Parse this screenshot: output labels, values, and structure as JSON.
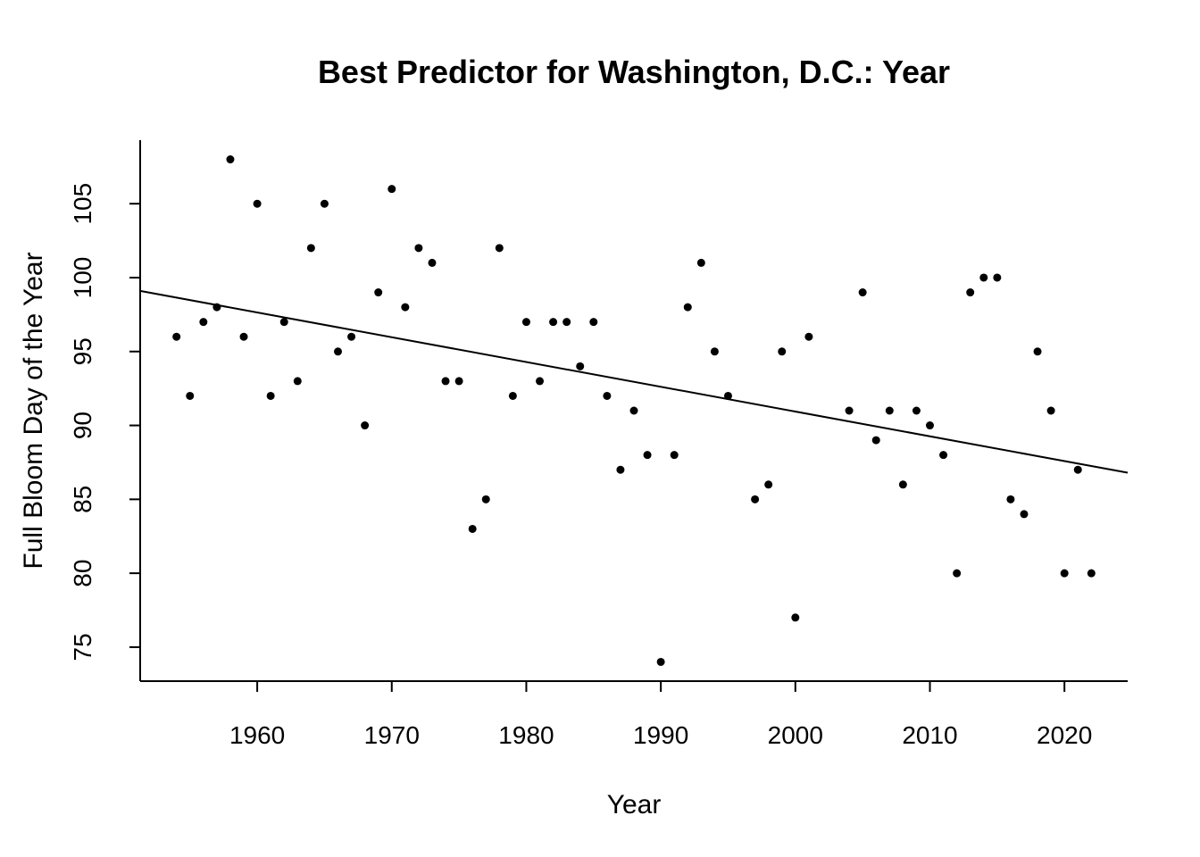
{
  "chart_data": {
    "type": "scatter",
    "title": "Best Predictor for Washington, D.C.: Year",
    "xlabel": "Year",
    "ylabel": "Full Bloom Day of the Year",
    "xlim": [
      1951.3,
      2024.7
    ],
    "ylim": [
      72.7,
      109.3
    ],
    "x_ticks": [
      1960,
      1970,
      1980,
      1990,
      2000,
      2010,
      2020
    ],
    "y_ticks": [
      75,
      80,
      85,
      90,
      95,
      100,
      105
    ],
    "grid": false,
    "points": [
      {
        "x": 1954,
        "y": 96
      },
      {
        "x": 1955,
        "y": 92
      },
      {
        "x": 1956,
        "y": 97
      },
      {
        "x": 1957,
        "y": 98
      },
      {
        "x": 1958,
        "y": 108
      },
      {
        "x": 1959,
        "y": 96
      },
      {
        "x": 1960,
        "y": 105
      },
      {
        "x": 1961,
        "y": 92
      },
      {
        "x": 1962,
        "y": 97
      },
      {
        "x": 1963,
        "y": 93
      },
      {
        "x": 1964,
        "y": 102
      },
      {
        "x": 1965,
        "y": 105
      },
      {
        "x": 1966,
        "y": 95
      },
      {
        "x": 1967,
        "y": 96
      },
      {
        "x": 1968,
        "y": 90
      },
      {
        "x": 1969,
        "y": 99
      },
      {
        "x": 1970,
        "y": 106
      },
      {
        "x": 1971,
        "y": 98
      },
      {
        "x": 1972,
        "y": 102
      },
      {
        "x": 1973,
        "y": 101
      },
      {
        "x": 1974,
        "y": 93
      },
      {
        "x": 1975,
        "y": 93
      },
      {
        "x": 1976,
        "y": 83
      },
      {
        "x": 1977,
        "y": 85
      },
      {
        "x": 1978,
        "y": 102
      },
      {
        "x": 1979,
        "y": 92
      },
      {
        "x": 1980,
        "y": 97
      },
      {
        "x": 1981,
        "y": 93
      },
      {
        "x": 1982,
        "y": 97
      },
      {
        "x": 1983,
        "y": 97
      },
      {
        "x": 1984,
        "y": 94
      },
      {
        "x": 1985,
        "y": 97
      },
      {
        "x": 1986,
        "y": 92
      },
      {
        "x": 1987,
        "y": 87
      },
      {
        "x": 1988,
        "y": 91
      },
      {
        "x": 1989,
        "y": 88
      },
      {
        "x": 1990,
        "y": 74
      },
      {
        "x": 1991,
        "y": 88
      },
      {
        "x": 1992,
        "y": 98
      },
      {
        "x": 1993,
        "y": 101
      },
      {
        "x": 1994,
        "y": 95
      },
      {
        "x": 1995,
        "y": 92
      },
      {
        "x": 1997,
        "y": 85
      },
      {
        "x": 1998,
        "y": 86
      },
      {
        "x": 1999,
        "y": 95
      },
      {
        "x": 2000,
        "y": 77
      },
      {
        "x": 2001,
        "y": 96
      },
      {
        "x": 2004,
        "y": 91
      },
      {
        "x": 2005,
        "y": 99
      },
      {
        "x": 2006,
        "y": 89
      },
      {
        "x": 2007,
        "y": 91
      },
      {
        "x": 2008,
        "y": 86
      },
      {
        "x": 2009,
        "y": 91
      },
      {
        "x": 2010,
        "y": 90
      },
      {
        "x": 2011,
        "y": 88
      },
      {
        "x": 2012,
        "y": 80
      },
      {
        "x": 2013,
        "y": 99
      },
      {
        "x": 2014,
        "y": 100
      },
      {
        "x": 2015,
        "y": 100
      },
      {
        "x": 2016,
        "y": 85
      },
      {
        "x": 2017,
        "y": 84
      },
      {
        "x": 2018,
        "y": 95
      },
      {
        "x": 2019,
        "y": 91
      },
      {
        "x": 2020,
        "y": 80
      },
      {
        "x": 2021,
        "y": 87
      },
      {
        "x": 2022,
        "y": 80
      }
    ],
    "fit_line": {
      "x": [
        1951.3,
        2024.7
      ],
      "y": [
        99.1,
        86.8
      ]
    }
  }
}
